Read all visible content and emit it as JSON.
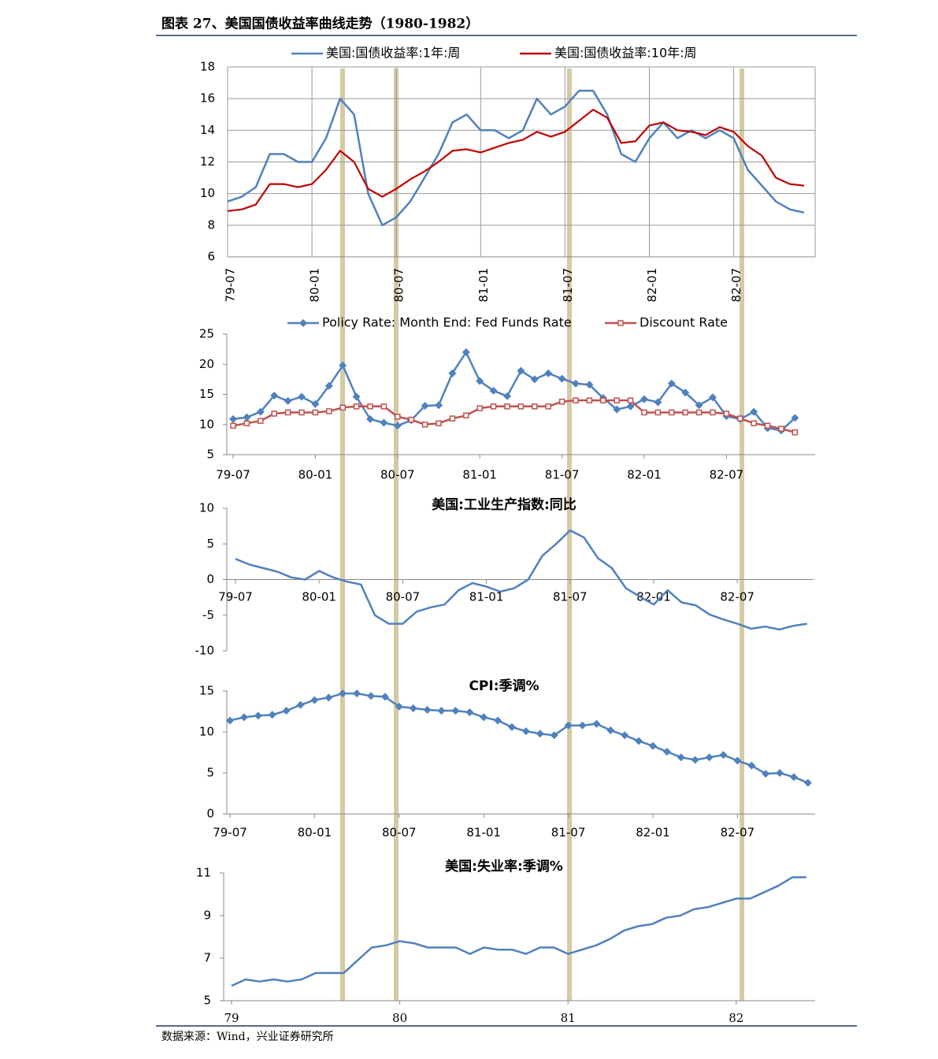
{
  "title": "图表 27、美国国债收益率曲线走势（1980-1982）",
  "source": "数据来源：Wind，兴业证券研究所",
  "chart_data": [
    {
      "type": "line",
      "legend": "top",
      "grid": true,
      "rotate_labels": true,
      "categories": [
        "79-07",
        null,
        null,
        null,
        null,
        null,
        "80-01",
        null,
        null,
        null,
        null,
        null,
        "80-07",
        null,
        null,
        null,
        null,
        null,
        "81-01",
        null,
        null,
        null,
        null,
        null,
        "81-07",
        null,
        null,
        null,
        null,
        null,
        "82-01",
        null,
        null,
        null,
        null,
        null,
        "82-07",
        null,
        null,
        null,
        null,
        null
      ],
      "ylim": [
        6,
        18
      ],
      "yticks": [
        6,
        8,
        10,
        12,
        14,
        16,
        18
      ],
      "series": [
        {
          "name": "美国:国债收益率:1年:周",
          "color": "#4f81bd",
          "values": [
            9.5,
            9.8,
            10.4,
            12.5,
            12.5,
            12.0,
            12.0,
            13.5,
            16.0,
            15.0,
            10.0,
            8.0,
            8.5,
            9.5,
            11.0,
            12.5,
            14.5,
            15.0,
            14.0,
            14.0,
            13.5,
            14.0,
            16.0,
            15.0,
            15.5,
            16.5,
            16.5,
            15.0,
            12.5,
            12.0,
            13.5,
            14.5,
            13.5,
            14.0,
            13.5,
            14.0,
            13.5,
            11.5,
            10.5,
            9.5,
            9.0,
            8.8
          ]
        },
        {
          "name": "美国:国债收益率:10年:周",
          "color": "#c00000",
          "values": [
            8.9,
            9.0,
            9.3,
            10.6,
            10.6,
            10.4,
            10.6,
            11.5,
            12.7,
            12.0,
            10.3,
            9.8,
            10.3,
            10.9,
            11.4,
            12.0,
            12.7,
            12.8,
            12.6,
            12.9,
            13.2,
            13.4,
            13.9,
            13.6,
            13.9,
            14.6,
            15.3,
            14.8,
            13.2,
            13.3,
            14.3,
            14.5,
            14.0,
            13.9,
            13.7,
            14.2,
            13.9,
            13.0,
            12.4,
            11.0,
            10.6,
            10.5
          ]
        }
      ]
    },
    {
      "type": "line",
      "legend": "top",
      "grid": false,
      "categories": [
        "79-07",
        null,
        null,
        null,
        null,
        null,
        "80-01",
        null,
        null,
        null,
        null,
        null,
        "80-07",
        null,
        null,
        null,
        null,
        null,
        "81-01",
        null,
        null,
        null,
        null,
        null,
        "81-07",
        null,
        null,
        null,
        null,
        null,
        "82-01",
        null,
        null,
        null,
        null,
        null,
        "82-07",
        null,
        null,
        null,
        null,
        null
      ],
      "ylim": [
        5,
        25
      ],
      "yticks": [
        5,
        10,
        15,
        20,
        25
      ],
      "series": [
        {
          "name": "Policy Rate: Month End: Fed Funds Rate",
          "color": "#4f81bd",
          "marker": "diamond",
          "values": [
            10.9,
            11.2,
            12.1,
            14.8,
            13.9,
            14.6,
            13.4,
            16.4,
            19.8,
            14.6,
            10.9,
            10.3,
            9.8,
            10.7,
            13.1,
            13.2,
            18.5,
            22.0,
            17.2,
            15.6,
            14.7,
            18.9,
            17.5,
            18.5,
            17.6,
            16.8,
            16.6,
            14.4,
            12.5,
            13.0,
            14.2,
            13.7,
            16.8,
            15.3,
            13.2,
            14.5,
            11.4,
            10.9,
            12.1,
            9.4,
            9.0,
            11.1
          ]
        },
        {
          "name": "Discount Rate",
          "color": "#c0504d",
          "marker": "square",
          "values": [
            9.8,
            10.2,
            10.6,
            11.8,
            12,
            12,
            12,
            12.2,
            12.8,
            13,
            13,
            13,
            11.3,
            10.8,
            10.0,
            10.2,
            11.0,
            11.5,
            12.7,
            13,
            13,
            13,
            13,
            13,
            13.8,
            14,
            14,
            14,
            14,
            14,
            12,
            12,
            12,
            12,
            12,
            12,
            11.8,
            11,
            10.2,
            9.8,
            9.3,
            8.7
          ]
        }
      ]
    },
    {
      "type": "line",
      "title": "美国:工业生产指数:同比",
      "grid": false,
      "categories": [
        "79-07",
        null,
        null,
        null,
        null,
        null,
        "80-01",
        null,
        null,
        null,
        null,
        null,
        "80-07",
        null,
        null,
        null,
        null,
        null,
        "81-01",
        null,
        null,
        null,
        null,
        null,
        "81-07",
        null,
        null,
        null,
        null,
        null,
        "82-01",
        null,
        null,
        null,
        null,
        null,
        "82-07",
        null,
        null,
        null,
        null,
        null
      ],
      "ylim": [
        -10,
        10
      ],
      "yticks": [
        -10,
        -5,
        0,
        5,
        10
      ],
      "series": [
        {
          "color": "#4f81bd",
          "values": [
            2.9,
            2.1,
            1.6,
            1.1,
            0.3,
            0.0,
            1.2,
            0.3,
            -0.3,
            -0.7,
            -5.0,
            -6.2,
            -6.2,
            -4.5,
            -3.9,
            -3.5,
            -1.5,
            -0.5,
            -1.0,
            -1.7,
            -1.2,
            0.0,
            3.3,
            5.0,
            6.9,
            5.9,
            3.0,
            1.6,
            -1.2,
            -2.4,
            -3.5,
            -1.5,
            -3.2,
            -3.6,
            -4.9,
            -5.6,
            -6.2,
            -6.9,
            -6.6,
            -7.0,
            -6.5,
            -6.2
          ]
        }
      ]
    },
    {
      "type": "line",
      "title": "CPI:季调%",
      "grid": false,
      "categories": [
        "79-07",
        null,
        null,
        null,
        null,
        null,
        "80-01",
        null,
        null,
        null,
        null,
        null,
        "80-07",
        null,
        null,
        null,
        null,
        null,
        "81-01",
        null,
        null,
        null,
        null,
        null,
        "81-07",
        null,
        null,
        null,
        null,
        null,
        "82-01",
        null,
        null,
        null,
        null,
        null,
        "82-07",
        null,
        null,
        null,
        null,
        null
      ],
      "ylim": [
        0,
        15
      ],
      "yticks": [
        0,
        5,
        10,
        15
      ],
      "series": [
        {
          "color": "#4f81bd",
          "marker": "diamond",
          "values": [
            11.4,
            11.8,
            12.0,
            12.1,
            12.6,
            13.3,
            13.9,
            14.2,
            14.7,
            14.7,
            14.4,
            14.3,
            13.1,
            12.9,
            12.7,
            12.6,
            12.6,
            12.4,
            11.8,
            11.4,
            10.6,
            10.1,
            9.8,
            9.6,
            10.8,
            10.8,
            11.0,
            10.2,
            9.6,
            8.9,
            8.3,
            7.6,
            6.9,
            6.6,
            6.9,
            7.2,
            6.5,
            5.9,
            4.9,
            5.0,
            4.5,
            3.8
          ]
        }
      ]
    },
    {
      "type": "line",
      "title": "美国:失业率:季调%",
      "grid": false,
      "serif_labels": true,
      "categories": [
        "79",
        null,
        null,
        null,
        null,
        null,
        null,
        null,
        null,
        null,
        null,
        null,
        "80",
        null,
        null,
        null,
        null,
        null,
        null,
        null,
        null,
        null,
        null,
        null,
        "81",
        null,
        null,
        null,
        null,
        null,
        null,
        null,
        null,
        null,
        null,
        null,
        "82",
        null,
        null,
        null,
        null,
        null
      ],
      "ylim": [
        5,
        11
      ],
      "yticks": [
        5,
        7,
        9,
        11
      ],
      "series": [
        {
          "color": "#4f81bd",
          "values": [
            5.7,
            6.0,
            5.9,
            6.0,
            5.9,
            6.0,
            6.3,
            6.3,
            6.3,
            6.9,
            7.5,
            7.6,
            7.8,
            7.7,
            7.5,
            7.5,
            7.5,
            7.2,
            7.5,
            7.4,
            7.4,
            7.2,
            7.5,
            7.5,
            7.2,
            7.4,
            7.6,
            7.9,
            8.3,
            8.5,
            8.6,
            8.9,
            9.0,
            9.3,
            9.4,
            9.6,
            9.8,
            9.8,
            10.1,
            10.4,
            10.8,
            10.8
          ]
        }
      ]
    }
  ]
}
